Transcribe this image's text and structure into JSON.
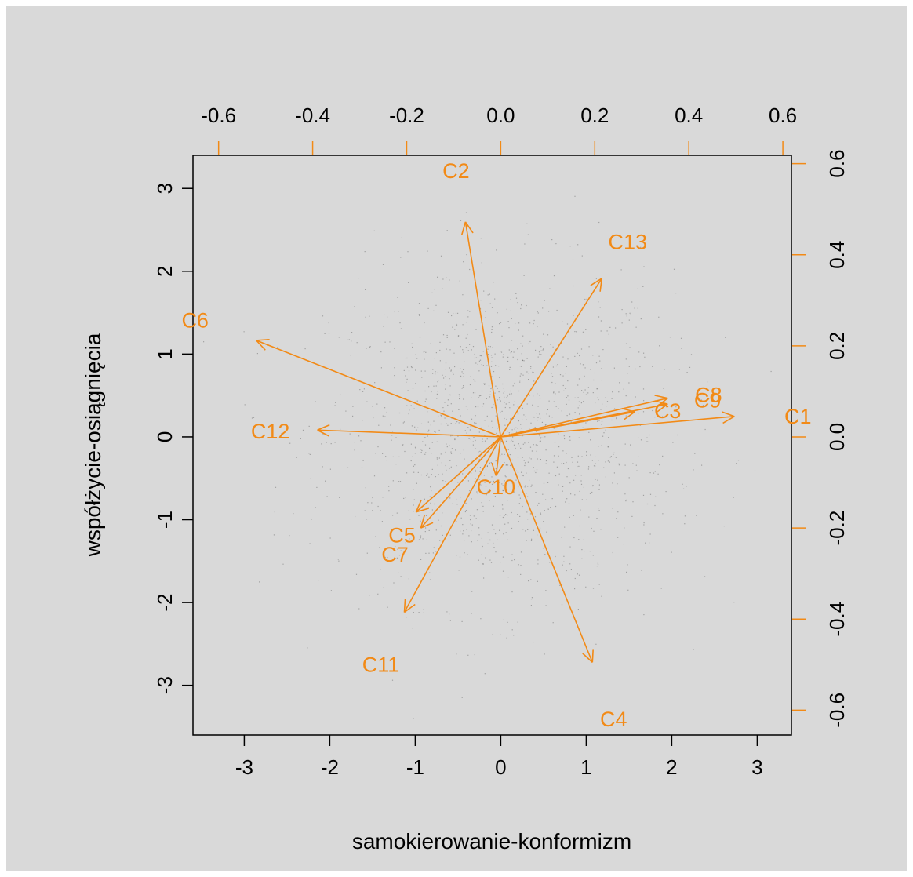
{
  "chart_data": {
    "type": "scatter",
    "subtype": "biplot",
    "xlabel": "samokierowanie-konformizm",
    "ylabel": "współżycie-osiągnięcia",
    "xlim": [
      -3.6,
      3.4
    ],
    "ylim": [
      -3.6,
      3.4
    ],
    "x_ticks": [
      -3,
      -2,
      -1,
      0,
      1,
      2,
      3
    ],
    "y_ticks": [
      -3,
      -2,
      -1,
      0,
      1,
      2,
      3
    ],
    "top_ticks": [
      "-0.6",
      "-0.4",
      "-0.2",
      "0.0",
      "0.2",
      "0.4",
      "0.6"
    ],
    "right_ticks": [
      "-0.6",
      "-0.4",
      "-0.2",
      "0.0",
      "0.2",
      "0.4",
      "0.6"
    ],
    "loadings_lim": [
      -0.6545,
      0.6182
    ],
    "observations": "dense cloud of small grey points centred on the origin (individual values not readable)",
    "grid": false,
    "colors": {
      "background": "#d9d9d9",
      "arrows": "#f28a16",
      "points": "#3a3a3a",
      "axes": "#000000"
    },
    "variables": [
      {
        "name": "C1",
        "x": 0.497,
        "y": 0.045,
        "label_x": 0.632,
        "label_y": 0.045
      },
      {
        "name": "C2",
        "x": -0.075,
        "y": 0.472,
        "label_x": -0.095,
        "label_y": 0.584
      },
      {
        "name": "C3",
        "x": 0.285,
        "y": 0.055,
        "label_x": 0.355,
        "label_y": 0.057
      },
      {
        "name": "C4",
        "x": 0.195,
        "y": -0.495,
        "label_x": 0.24,
        "label_y": -0.62
      },
      {
        "name": "C5",
        "x": -0.18,
        "y": -0.165,
        "label_x": -0.21,
        "label_y": -0.216
      },
      {
        "name": "C6",
        "x": -0.52,
        "y": 0.212,
        "label_x": -0.65,
        "label_y": 0.256
      },
      {
        "name": "C7",
        "x": -0.17,
        "y": -0.2,
        "label_x": -0.225,
        "label_y": -0.258
      },
      {
        "name": "C8",
        "x": 0.355,
        "y": 0.085,
        "label_x": 0.442,
        "label_y": 0.092
      },
      {
        "name": "C9",
        "x": 0.355,
        "y": 0.072,
        "label_x": 0.44,
        "label_y": 0.08
      },
      {
        "name": "C10",
        "x": -0.01,
        "y": -0.085,
        "label_x": -0.01,
        "label_y": -0.11
      },
      {
        "name": "C11",
        "x": -0.205,
        "y": -0.385,
        "label_x": -0.255,
        "label_y": -0.5
      },
      {
        "name": "C12",
        "x": -0.39,
        "y": 0.015,
        "label_x": -0.49,
        "label_y": 0.012
      },
      {
        "name": "C13",
        "x": 0.215,
        "y": 0.348,
        "label_x": 0.27,
        "label_y": 0.428
      }
    ]
  }
}
